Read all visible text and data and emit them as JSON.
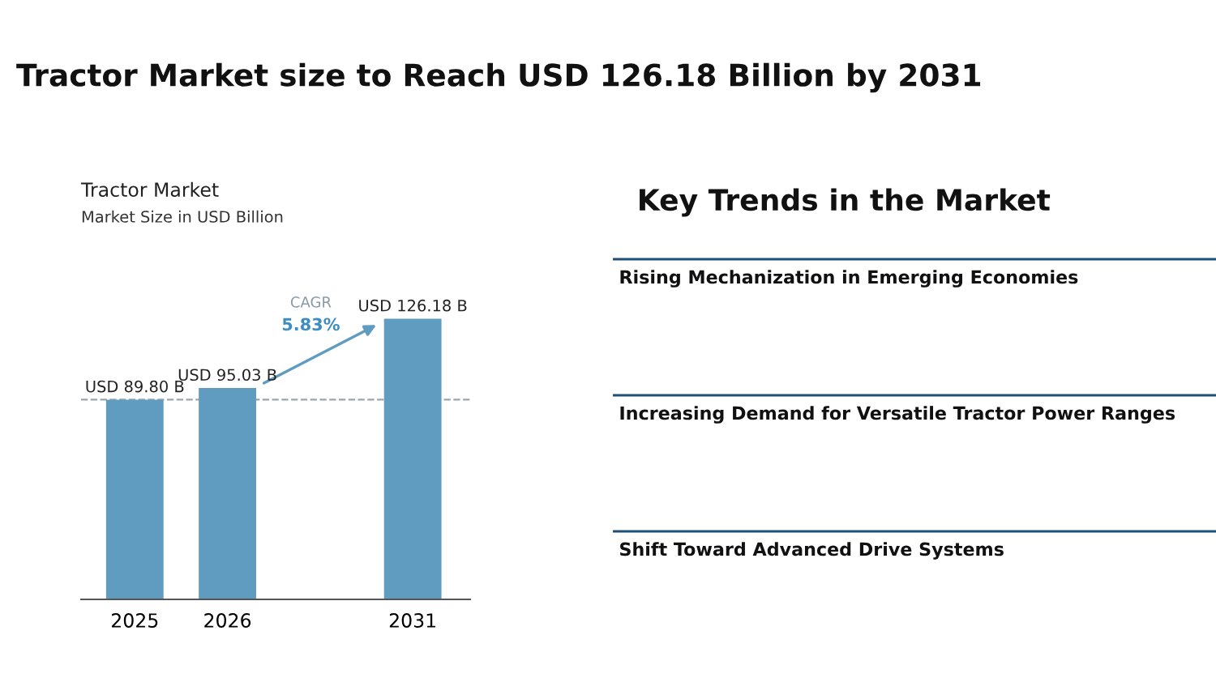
{
  "chart_data": [
    {
      "type": "other",
      "title": "Tractor Market size to Reach USD 126.18 Billion by 2031"
    },
    {
      "type": "bar",
      "title": "Tractor Market",
      "subtitle": "Market Size in USD Billion",
      "categories": [
        "2025",
        "2026",
        null,
        "2031"
      ],
      "values": [
        89.8,
        95.03,
        null,
        126.18
      ],
      "value_labels": [
        "USD 89.80 B",
        "USD 95.03 B",
        null,
        "USD 126.18 B"
      ],
      "color": "#5f9cc0",
      "ref_lines": [
        {
          "axis": "y",
          "value": 89.8,
          "color": "#9aa5ad",
          "line_style": "dashed"
        }
      ],
      "annotations": [
        "CAGR",
        "5.83%"
      ],
      "grid": false,
      "legend": false
    },
    {
      "type": "other",
      "title": "Key Trends in the Market",
      "annotations": [
        "Rising Mechanization in Emerging Economies",
        "Increasing Demand for Versatile Tractor Power Ranges",
        "Shift Toward Advanced Drive Systems"
      ],
      "color": "#1f4e79"
    }
  ]
}
